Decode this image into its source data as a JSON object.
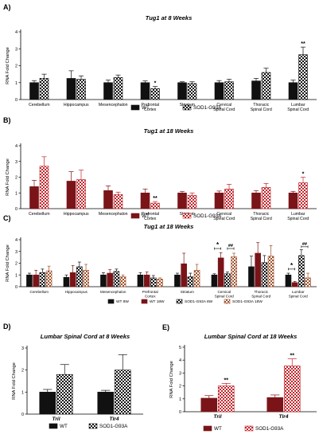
{
  "figure": {
    "panel_labels": [
      "A)",
      "B)",
      "C)",
      "D)",
      "E)"
    ]
  },
  "colors": {
    "wt_black": "#111111",
    "wt_red": "#7a1418",
    "sod1_red": "#c1272d",
    "axis": "#000000"
  },
  "chart_data": [
    {
      "panel": "A)",
      "type": "bar",
      "title": "Tug1 at 8 Weeks",
      "ylabel": "RNA Fold Change",
      "ylim": [
        0,
        4
      ],
      "yticks": [
        0,
        1,
        2,
        3,
        4
      ],
      "categories": [
        "Cerebellum",
        "Hippocampus",
        "Mesencephalon",
        "Prefrontal Cortex",
        "Striatum",
        "Cervical Spinal Cord",
        "Thoracic Spinal Cord",
        "Lumbar Spinal Cord"
      ],
      "series": [
        {
          "name": "WT",
          "values": [
            1.0,
            1.25,
            1.0,
            1.0,
            1.0,
            1.0,
            1.1,
            1.0
          ],
          "errors": [
            0.12,
            0.45,
            0.15,
            0.1,
            0.05,
            0.12,
            0.15,
            0.15
          ]
        },
        {
          "name": "SOD1-G93A",
          "values": [
            1.25,
            1.2,
            1.3,
            0.65,
            0.95,
            1.05,
            1.6,
            2.65
          ],
          "errors": [
            0.25,
            0.2,
            0.15,
            0.12,
            0.1,
            0.15,
            0.25,
            0.45
          ]
        }
      ],
      "annotations": [
        {
          "category": "Prefrontal Cortex",
          "series": "SOD1-G93A",
          "text": "*"
        },
        {
          "category": "Lumbar Spinal Cord",
          "series": "SOD1-G93A",
          "text": "**"
        }
      ],
      "legend": [
        "WT",
        "SOD1-G93A"
      ]
    },
    {
      "panel": "B)",
      "type": "bar",
      "title": "Tug1 at 18 Weeks",
      "ylabel": "RNA Fold Change",
      "ylim": [
        0,
        4
      ],
      "yticks": [
        0,
        1,
        2,
        3,
        4
      ],
      "categories": [
        "Cerebellum",
        "Hippocampus",
        "Mesencephalon",
        "Prefrontal Cortex",
        "Striatum",
        "Cervical Spinal Cord",
        "Thoracic Spinal Cord",
        "Lumbar Spinal Cord"
      ],
      "series": [
        {
          "name": "WT",
          "values": [
            1.4,
            1.75,
            1.15,
            1.0,
            1.0,
            1.0,
            1.0,
            1.0
          ],
          "errors": [
            0.4,
            0.6,
            0.3,
            0.25,
            0.1,
            0.12,
            0.15,
            0.1
          ]
        },
        {
          "name": "SOD1-G93A",
          "values": [
            2.7,
            1.85,
            0.9,
            0.35,
            0.85,
            1.25,
            1.35,
            1.65
          ],
          "errors": [
            0.6,
            0.6,
            0.15,
            0.1,
            0.15,
            0.3,
            0.25,
            0.35
          ]
        }
      ],
      "annotations": [
        {
          "category": "Prefrontal Cortex",
          "series": "SOD1-G93A",
          "text": "**"
        },
        {
          "category": "Lumbar Spinal Cord",
          "series": "SOD1-G93A",
          "text": "*"
        }
      ],
      "legend": [
        "WT",
        "SOD1-G93A"
      ]
    },
    {
      "panel": "C)",
      "type": "bar",
      "title": "Tug1 at 18 Weeks",
      "ylabel": "RNA Fold Change",
      "ylim": [
        0,
        4
      ],
      "yticks": [
        0,
        1,
        2,
        3,
        4
      ],
      "categories": [
        "Cerebellum",
        "Hippocampus",
        "Mesencephalon",
        "Prefrontal Cortex",
        "Striatum",
        "Cervical Spinal Cord",
        "Thoracic Spinal Cord",
        "Lumbar Spinal Cord"
      ],
      "series": [
        {
          "name": "WT 8W",
          "values": [
            1.0,
            0.8,
            1.0,
            1.0,
            1.0,
            1.0,
            1.7,
            1.0
          ],
          "errors": [
            0.15,
            0.2,
            0.2,
            0.2,
            0.15,
            0.1,
            0.9,
            0.15
          ]
        },
        {
          "name": "WT 18W",
          "values": [
            1.0,
            1.2,
            1.15,
            1.0,
            1.95,
            2.45,
            2.85,
            0.35
          ],
          "errors": [
            0.4,
            0.6,
            0.3,
            0.25,
            0.9,
            0.45,
            0.9,
            0.1
          ]
        },
        {
          "name": "SOD1-G93A 8W",
          "values": [
            1.2,
            1.7,
            1.3,
            0.75,
            0.85,
            1.1,
            2.05,
            2.65
          ],
          "errors": [
            0.3,
            0.4,
            0.2,
            0.2,
            0.3,
            0.15,
            0.6,
            0.5
          ]
        },
        {
          "name": "SOD1-G93A 18W",
          "values": [
            1.35,
            1.4,
            0.85,
            0.65,
            1.4,
            2.55,
            2.6,
            0.75
          ],
          "errors": [
            0.4,
            0.5,
            0.15,
            0.1,
            0.5,
            0.3,
            0.9,
            0.4
          ]
        }
      ],
      "annotations": [
        {
          "category": "Cervical Spinal Cord",
          "text": "*",
          "from": "WT 8W",
          "to": "WT 18W",
          "y": 3.25
        },
        {
          "category": "Cervical Spinal Cord",
          "text": "##",
          "from": "SOD1-G93A 8W",
          "to": "SOD1-G93A 18W",
          "y": 3.25
        },
        {
          "category": "Lumbar Spinal Cord",
          "text": "*",
          "from": "WT 8W",
          "to": "WT 18W",
          "y": 1.5
        },
        {
          "category": "Lumbar Spinal Cord",
          "text": "##",
          "from": "SOD1-G93A 8W",
          "to": "SOD1-G93A 18W",
          "y": 3.4
        }
      ],
      "legend": [
        "WT 8W",
        "WT 18W",
        "SOD1-G93A 8W",
        "SOD1-G93A 18W"
      ]
    },
    {
      "panel": "D)",
      "type": "bar",
      "title": "Lumbar Spinal Cord at 8 Weeks",
      "ylabel": "RNA Fold Change",
      "ylim": [
        0,
        3
      ],
      "yticks": [
        0,
        1,
        2,
        3
      ],
      "categories": [
        "Tril",
        "Tlr4"
      ],
      "series": [
        {
          "name": "WT",
          "values": [
            1.0,
            1.0
          ],
          "errors": [
            0.12,
            0.08
          ]
        },
        {
          "name": "SOD1-G93A",
          "values": [
            1.8,
            2.0
          ],
          "errors": [
            0.45,
            0.7
          ]
        }
      ],
      "annotations": [],
      "legend": [
        "WT",
        "SOD1-G93A"
      ]
    },
    {
      "panel": "E)",
      "type": "bar",
      "title": "Lumbar Spinal Cord at 18 Weeks",
      "ylabel": "RNA Fold Change",
      "ylim": [
        0,
        5
      ],
      "yticks": [
        0,
        1,
        2,
        3,
        4,
        5
      ],
      "categories": [
        "Tril",
        "Tlr4"
      ],
      "series": [
        {
          "name": "WT",
          "values": [
            1.05,
            1.1
          ],
          "errors": [
            0.2,
            0.2
          ]
        },
        {
          "name": "SOD1-G93A",
          "values": [
            2.0,
            3.55
          ],
          "errors": [
            0.2,
            0.55
          ]
        }
      ],
      "annotations": [
        {
          "category": "Tril",
          "series": "SOD1-G93A",
          "text": "**"
        },
        {
          "category": "Tlr4",
          "series": "SOD1-G93A",
          "text": "**"
        }
      ],
      "legend": [
        "WT",
        "SOD1-G93A"
      ]
    }
  ]
}
